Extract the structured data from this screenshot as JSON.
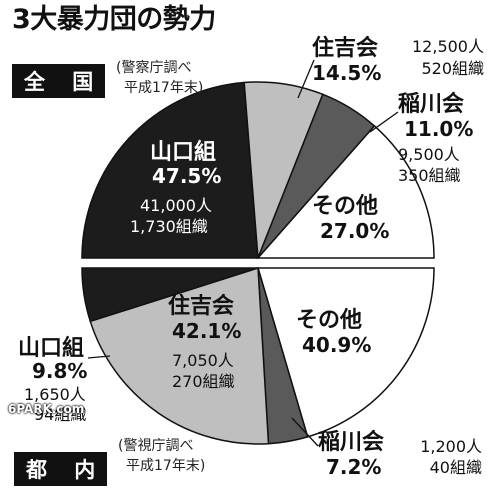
{
  "title": "3大暴力団の勢力",
  "chart_data": [
    {
      "type": "pie",
      "region_label": "全 国",
      "source_line1": "(警察庁調べ",
      "source_line2": "平成17年末)",
      "slices": [
        {
          "name": "山口組",
          "percent": 47.5,
          "percent_text": "47.5%",
          "members": "41,000人",
          "groups": "1,730組織",
          "color": "#1c1c1c"
        },
        {
          "name": "住吉会",
          "percent": 14.5,
          "percent_text": "14.5%",
          "members": "12,500人",
          "groups": "520組織",
          "color": "#bfbfbf"
        },
        {
          "name": "稲川会",
          "percent": 11.0,
          "percent_text": "11.0%",
          "members": "9,500人",
          "groups": "350組織",
          "color": "#5a5a5a"
        },
        {
          "name": "その他",
          "percent": 27.0,
          "percent_text": "27.0%",
          "color": "#ffffff"
        }
      ]
    },
    {
      "type": "pie",
      "region_label": "都 内",
      "source_line1": "(警視庁調べ",
      "source_line2": "平成17年末)",
      "slices": [
        {
          "name": "その他",
          "percent": 40.9,
          "percent_text": "40.9%",
          "color": "#ffffff"
        },
        {
          "name": "稲川会",
          "percent": 7.2,
          "percent_text": "7.2%",
          "members": "1,200人",
          "groups": "40組織",
          "color": "#5a5a5a"
        },
        {
          "name": "住吉会",
          "percent": 42.1,
          "percent_text": "42.1%",
          "members": "7,050人",
          "groups": "270組織",
          "color": "#bfbfbf"
        },
        {
          "name": "山口組",
          "percent": 9.8,
          "percent_text": "9.8%",
          "members": "1,650人",
          "groups": "94組織",
          "color": "#1c1c1c"
        }
      ]
    }
  ],
  "watermark": "6PARK.com"
}
